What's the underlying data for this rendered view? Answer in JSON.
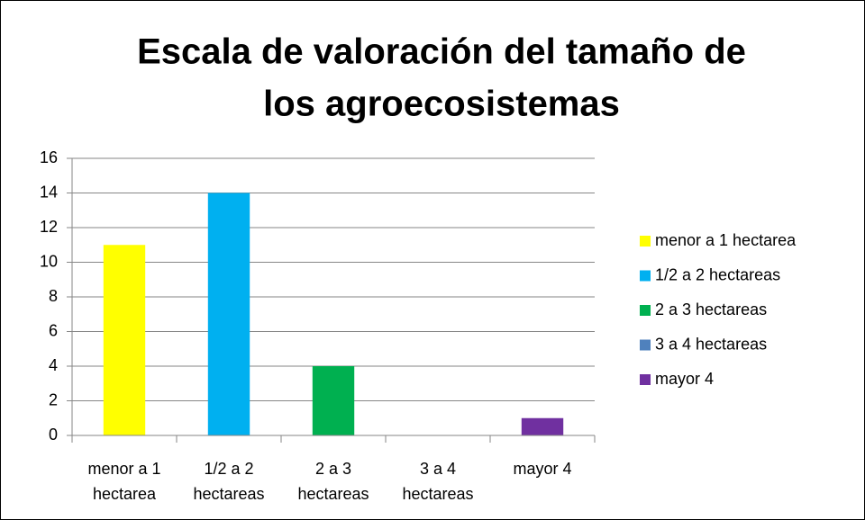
{
  "chart_data": {
    "type": "bar",
    "title": [
      "Escala de valoración del tamaño de",
      "los agroecosistemas"
    ],
    "categories": [
      [
        "menor a 1",
        "hectarea"
      ],
      [
        "1/2 a 2",
        "hectareas"
      ],
      [
        "2 a 3",
        "hectareas"
      ],
      [
        "3 a 4",
        "hectareas"
      ],
      [
        "mayor 4"
      ]
    ],
    "values": [
      11,
      14,
      4,
      0,
      1
    ],
    "colors": [
      "#ffff00",
      "#00b0f0",
      "#00b050",
      "#4f81bd",
      "#7030a0"
    ],
    "legend": [
      "menor a 1 hectarea",
      "1/2 a 2 hectareas",
      "2 a 3 hectareas",
      "3 a 4 hectareas",
      "mayor 4"
    ],
    "legend_position": "right",
    "ylim": [
      0,
      16
    ],
    "yticks": [
      0,
      2,
      4,
      6,
      8,
      10,
      12,
      14,
      16
    ],
    "grid": true
  }
}
